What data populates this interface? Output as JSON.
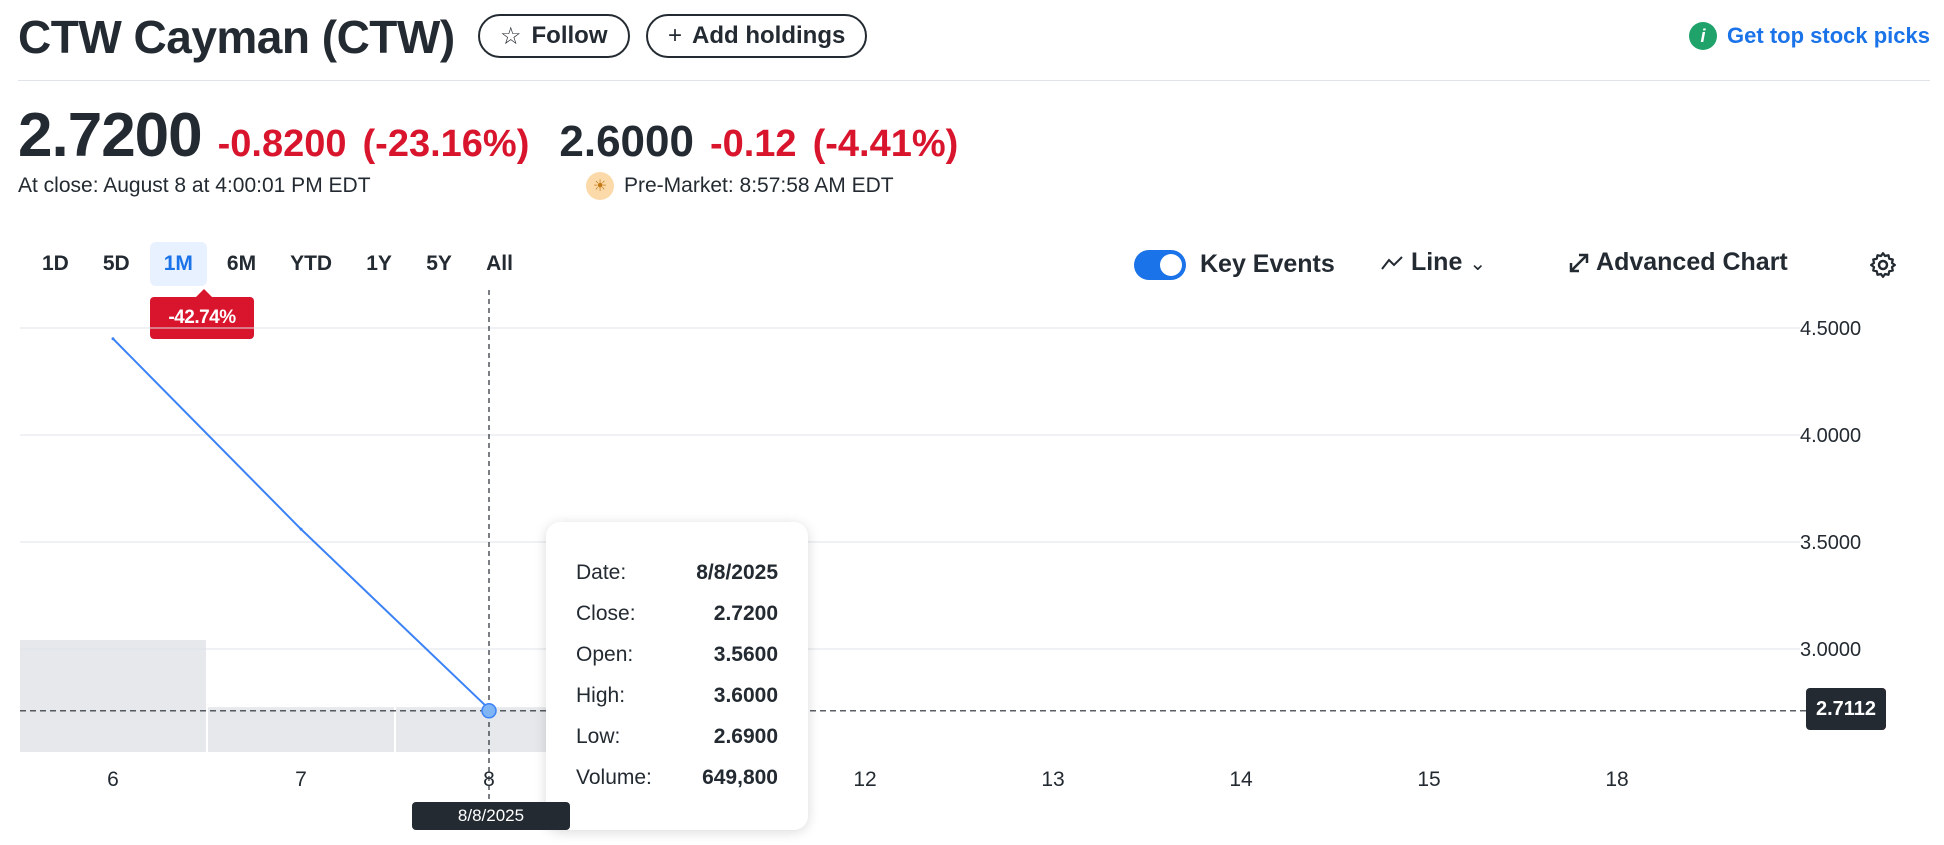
{
  "header": {
    "title": "CTW Cayman (CTW)",
    "follow_label": "Follow",
    "add_holdings_label": "Add holdings",
    "top_picks_label": "Get top stock picks"
  },
  "quote": {
    "price": "2.7200",
    "change": "-0.8200",
    "change_pct": "(-23.16%)",
    "close_label": "At close: August 8 at 4:00:01 PM EDT",
    "premarket_price": "2.6000",
    "premarket_change": "-0.12",
    "premarket_change_pct": "(-4.41%)",
    "premarket_label": "Pre-Market: 8:57:58 AM EDT"
  },
  "ranges": [
    "1D",
    "5D",
    "1M",
    "6M",
    "YTD",
    "1Y",
    "5Y",
    "All"
  ],
  "active_range": "1M",
  "performance_badge": "-42.74%",
  "controls": {
    "key_events_label": "Key Events",
    "key_events_on": true,
    "chart_type_label": "Line",
    "advanced_label": "Advanced Chart"
  },
  "tooltip": {
    "rows": [
      {
        "k": "Date:",
        "v": "8/8/2025"
      },
      {
        "k": "Close:",
        "v": "2.7200"
      },
      {
        "k": "Open:",
        "v": "3.5600"
      },
      {
        "k": "High:",
        "v": "3.6000"
      },
      {
        "k": "Low:",
        "v": "2.6900"
      },
      {
        "k": "Volume:",
        "v": "649,800"
      }
    ]
  },
  "crosshair_date": "8/8/2025",
  "last_price_label": "2.7112",
  "colors": {
    "line": "#3b82f6",
    "negative": "#d8152d",
    "accent": "#1a73e8",
    "volume_bar": "#e6e8eb"
  },
  "chart_data": {
    "type": "line",
    "x_ticks": [
      "6",
      "7",
      "8",
      "11",
      "12",
      "13",
      "14",
      "15",
      "18"
    ],
    "y_ticks": [
      "4.5000",
      "4.0000",
      "3.5000",
      "3.0000"
    ],
    "ylim": [
      2.4,
      4.6
    ],
    "series": [
      {
        "x": [
          "6",
          "7",
          "8"
        ],
        "values": [
          4.45,
          3.56,
          2.72
        ]
      }
    ],
    "volume": [
      {
        "x": "6",
        "value": 1.0
      },
      {
        "x": "7",
        "value": 0.4
      },
      {
        "x": "8",
        "value": 0.4
      }
    ],
    "reference_line": 2.7112,
    "crosshair_x": "8",
    "grid": true
  }
}
